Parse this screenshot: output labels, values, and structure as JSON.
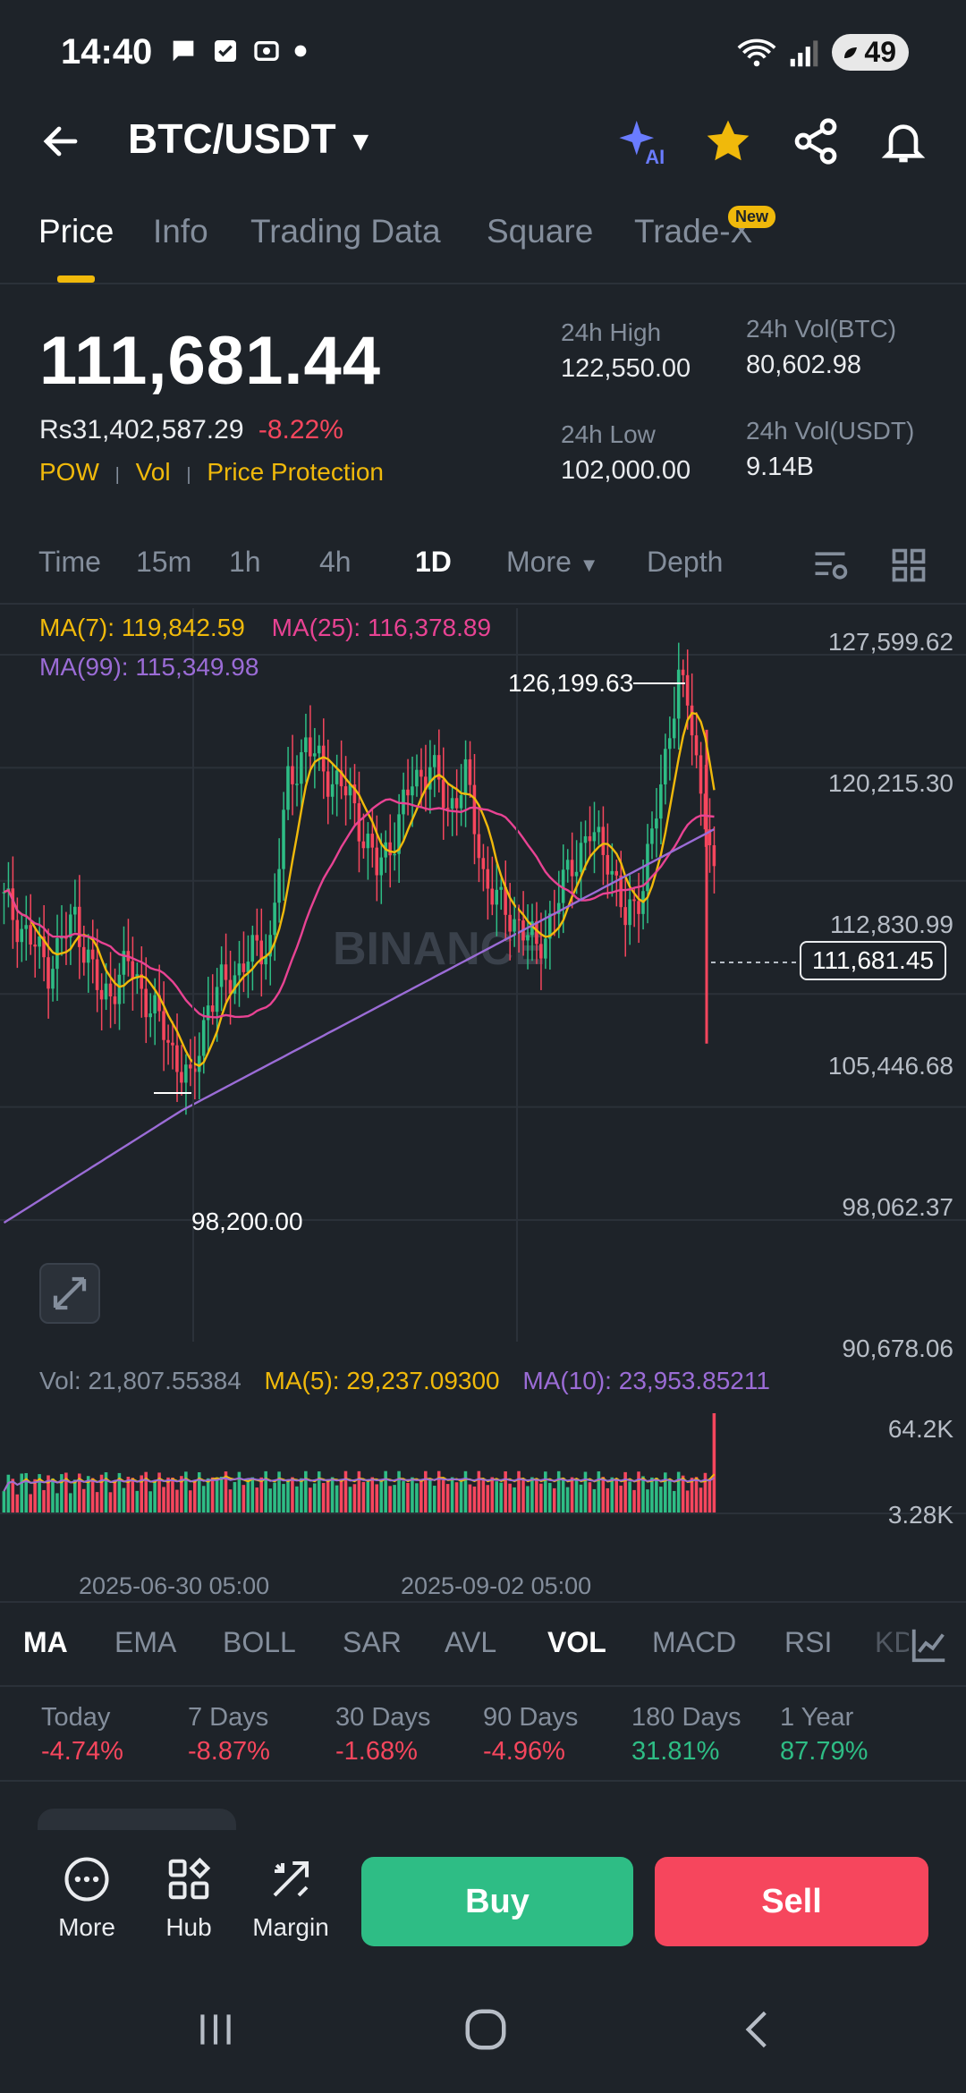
{
  "status_bar": {
    "time": "14:40",
    "battery": "49"
  },
  "header": {
    "pair": "BTC/USDT"
  },
  "tabs": [
    {
      "label": "Price"
    },
    {
      "label": "Info"
    },
    {
      "label": "Trading Data"
    },
    {
      "label": "Square"
    },
    {
      "label": "Trade-X"
    }
  ],
  "new_badge": "New",
  "price": {
    "last": "111,681.44",
    "local": "Rs31,402,587.29",
    "change": "-8.22%",
    "tags": [
      "POW",
      "Vol",
      "Price Protection"
    ]
  },
  "stats": {
    "high_label": "24h High",
    "high": "122,550.00",
    "low_label": "24h Low",
    "low": "102,000.00",
    "vol_btc_label": "24h Vol(BTC)",
    "vol_btc": "80,602.98",
    "vol_usdt_label": "24h Vol(USDT)",
    "vol_usdt": "9.14B"
  },
  "intervals": [
    "Time",
    "15m",
    "1h",
    "4h",
    "1D",
    "More",
    "Depth"
  ],
  "chart_data": {
    "type": "candlestick",
    "ma_legend": {
      "ma7": "MA(7): 119,842.59",
      "ma25": "MA(25): 116,378.89",
      "ma99": "MA(99): 115,349.98"
    },
    "y_ticks": [
      "127,599.62",
      "120,215.30",
      "112,830.99",
      "105,446.68",
      "98,062.37",
      "90,678.06"
    ],
    "ylim": [
      90678.06,
      127599.62
    ],
    "current_price_label": "111,681.45",
    "current_price": 111681.45,
    "high_marker": "126,199.63",
    "low_marker": "98,200.00",
    "watermark": "BINANCE",
    "x_labels": [
      "2025-06-30 05:00",
      "2025-09-02 05:00"
    ],
    "colors": {
      "up": "#2ebd85",
      "down": "#f6465d",
      "ma7": "#f0b90b",
      "ma25": "#e84393",
      "ma99": "#9b6cd6"
    },
    "volume": {
      "vol_legend": "Vol: 21,807.55384",
      "ma5_legend": "MA(5): 29,237.09300",
      "ma10_legend": "MA(10): 23,953.85211",
      "y_ticks": [
        "64.2K",
        "3.28K"
      ]
    }
  },
  "indicators": [
    "MA",
    "EMA",
    "BOLL",
    "SAR",
    "AVL",
    "VOL",
    "MACD",
    "RSI",
    "KD"
  ],
  "performance": [
    {
      "label": "Today",
      "value": "-4.74%"
    },
    {
      "label": "7 Days",
      "value": "-8.87%"
    },
    {
      "label": "30 Days",
      "value": "-1.68%"
    },
    {
      "label": "90 Days",
      "value": "-4.96%"
    },
    {
      "label": "180 Days",
      "value": "31.81%"
    },
    {
      "label": "1 Year",
      "value": "87.79%"
    }
  ],
  "actions": {
    "more": "More",
    "hub": "Hub",
    "margin": "Margin",
    "buy": "Buy",
    "sell": "Sell"
  }
}
